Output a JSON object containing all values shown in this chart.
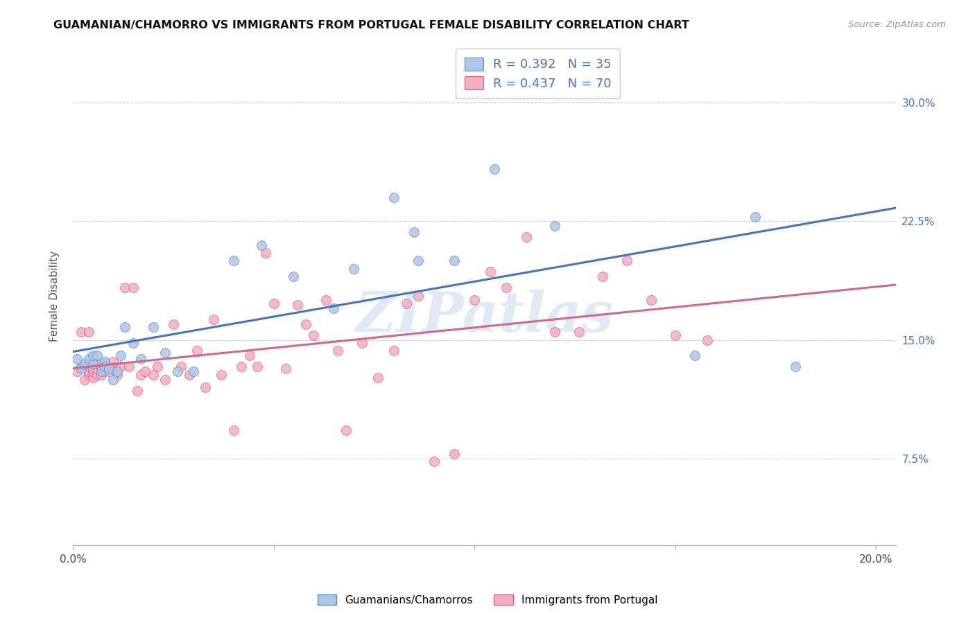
{
  "title": "GUAMANIAN/CHAMORRO VS IMMIGRANTS FROM PORTUGAL FEMALE DISABILITY CORRELATION CHART",
  "source": "Source: ZipAtlas.com",
  "ylabel": "Female Disability",
  "xlim": [
    0.0,
    0.205
  ],
  "ylim": [
    0.02,
    0.335
  ],
  "xtick_positions": [
    0.0,
    0.05,
    0.1,
    0.15,
    0.2
  ],
  "xtick_labels": [
    "0.0%",
    "",
    "",
    "",
    "20.0%"
  ],
  "ytick_values": [
    0.075,
    0.15,
    0.225,
    0.3
  ],
  "ytick_labels": [
    "7.5%",
    "15.0%",
    "22.5%",
    "30.0%"
  ],
  "legend_R1": "R = 0.392",
  "legend_N1": "N = 35",
  "legend_R2": "R = 0.437",
  "legend_N2": "N = 70",
  "legend_label1": "Guamanians/Chamorros",
  "legend_label2": "Immigrants from Portugal",
  "blue_color": "#aec6e8",
  "blue_edge_color": "#5b8ec4",
  "pink_color": "#f5aec0",
  "pink_edge_color": "#d96080",
  "blue_line_color": "#4472c4",
  "pink_line_color": "#d06888",
  "watermark_text": "ZIPatlas",
  "watermark_color": "#ccddf0",
  "blue_x": [
    0.001,
    0.002,
    0.003,
    0.004,
    0.005,
    0.005,
    0.006,
    0.007,
    0.008,
    0.008,
    0.009,
    0.01,
    0.011,
    0.012,
    0.013,
    0.015,
    0.017,
    0.02,
    0.023,
    0.026,
    0.03,
    0.04,
    0.047,
    0.055,
    0.065,
    0.07,
    0.08,
    0.085,
    0.086,
    0.095,
    0.105,
    0.12,
    0.155,
    0.17,
    0.18
  ],
  "blue_y": [
    0.138,
    0.132,
    0.135,
    0.138,
    0.135,
    0.14,
    0.14,
    0.13,
    0.136,
    0.133,
    0.132,
    0.125,
    0.13,
    0.14,
    0.158,
    0.148,
    0.138,
    0.158,
    0.142,
    0.13,
    0.13,
    0.2,
    0.21,
    0.19,
    0.17,
    0.195,
    0.24,
    0.218,
    0.2,
    0.2,
    0.258,
    0.222,
    0.14,
    0.228,
    0.133
  ],
  "pink_x": [
    0.001,
    0.002,
    0.002,
    0.003,
    0.003,
    0.004,
    0.004,
    0.004,
    0.005,
    0.005,
    0.005,
    0.006,
    0.006,
    0.006,
    0.007,
    0.007,
    0.008,
    0.008,
    0.009,
    0.01,
    0.01,
    0.011,
    0.012,
    0.013,
    0.014,
    0.015,
    0.016,
    0.017,
    0.018,
    0.02,
    0.021,
    0.023,
    0.025,
    0.027,
    0.029,
    0.031,
    0.033,
    0.035,
    0.037,
    0.04,
    0.042,
    0.044,
    0.046,
    0.048,
    0.05,
    0.053,
    0.056,
    0.058,
    0.06,
    0.063,
    0.066,
    0.068,
    0.072,
    0.076,
    0.08,
    0.083,
    0.086,
    0.09,
    0.095,
    0.1,
    0.104,
    0.108,
    0.113,
    0.12,
    0.126,
    0.132,
    0.138,
    0.144,
    0.15,
    0.158
  ],
  "pink_y": [
    0.13,
    0.133,
    0.155,
    0.125,
    0.133,
    0.128,
    0.13,
    0.155,
    0.126,
    0.13,
    0.132,
    0.128,
    0.132,
    0.135,
    0.128,
    0.133,
    0.13,
    0.135,
    0.13,
    0.133,
    0.136,
    0.128,
    0.133,
    0.183,
    0.133,
    0.183,
    0.118,
    0.128,
    0.13,
    0.128,
    0.133,
    0.125,
    0.16,
    0.133,
    0.128,
    0.143,
    0.12,
    0.163,
    0.128,
    0.093,
    0.133,
    0.14,
    0.133,
    0.205,
    0.173,
    0.132,
    0.172,
    0.16,
    0.153,
    0.175,
    0.143,
    0.093,
    0.148,
    0.126,
    0.143,
    0.173,
    0.178,
    0.073,
    0.078,
    0.175,
    0.193,
    0.183,
    0.215,
    0.155,
    0.155,
    0.19,
    0.2,
    0.175,
    0.153,
    0.15
  ]
}
